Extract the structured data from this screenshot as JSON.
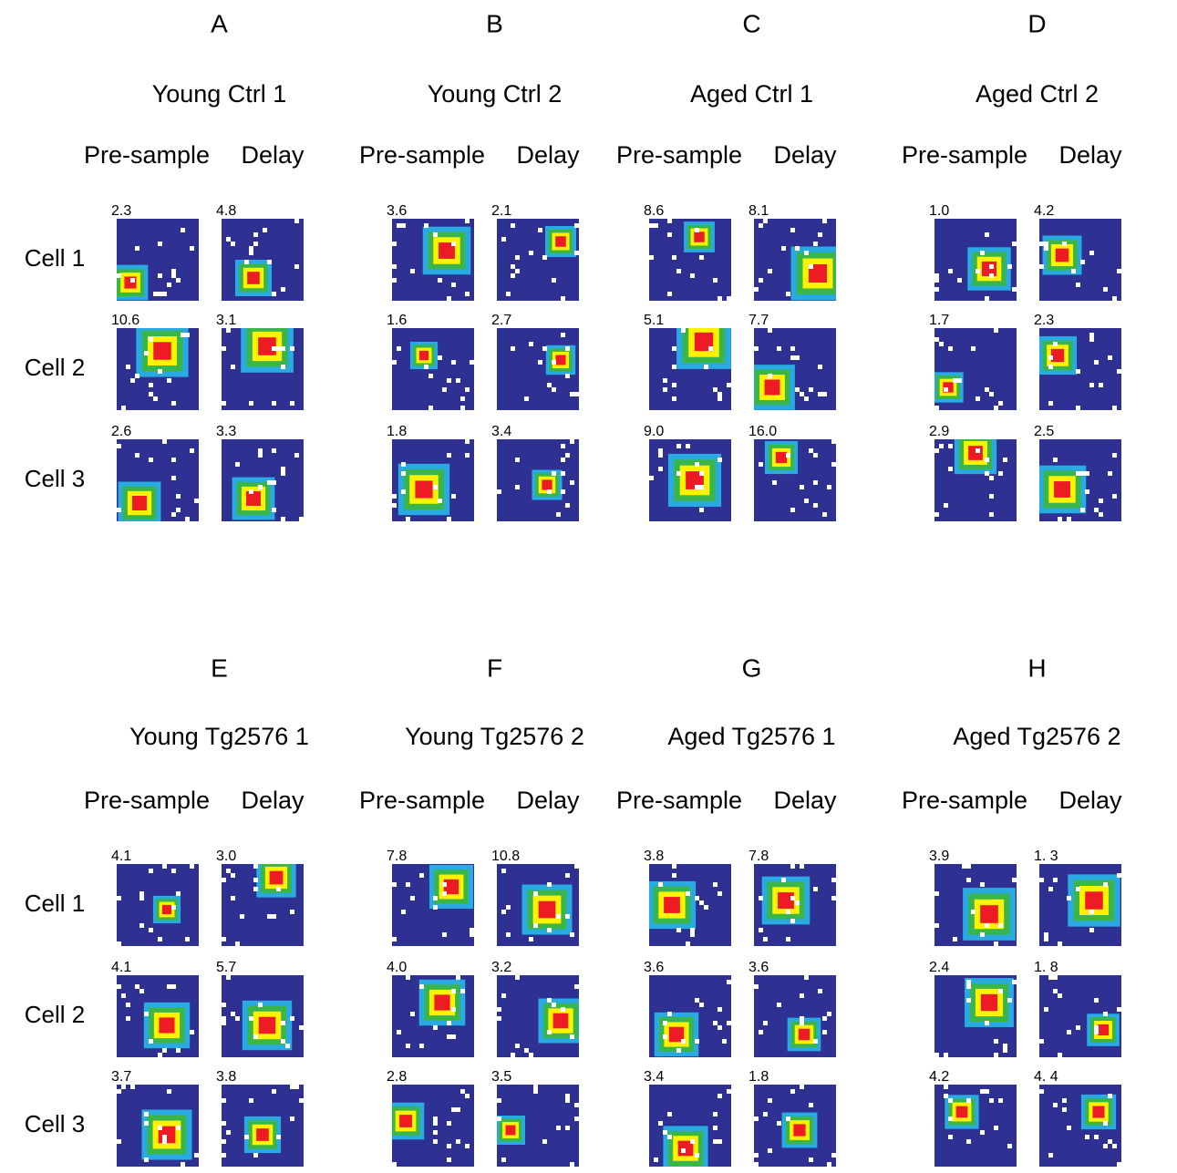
{
  "sections": [
    {
      "row_labels": [
        "Cell 1",
        "Cell 2",
        "Cell 3"
      ],
      "panels": [
        {
          "letter": "A",
          "title": "Young Ctrl 1",
          "columns": [
            "Pre-sample",
            "Delay"
          ],
          "peaks": [
            [
              "2.3",
              "4.8"
            ],
            [
              "10.6",
              "3.1"
            ],
            [
              "2.6",
              "3.3"
            ]
          ]
        },
        {
          "letter": "B",
          "title": "Young Ctrl 2",
          "columns": [
            "Pre-sample",
            "Delay"
          ],
          "peaks": [
            [
              "3.6",
              "2.1"
            ],
            [
              "1.6",
              "2.7"
            ],
            [
              "1.8",
              "3.4"
            ]
          ]
        },
        {
          "letter": "C",
          "title": "Aged Ctrl 1",
          "columns": [
            "Pre-sample",
            "Delay"
          ],
          "peaks": [
            [
              "8.6",
              "8.1"
            ],
            [
              "5.1",
              "7.7"
            ],
            [
              "9.0",
              "16.0"
            ]
          ]
        },
        {
          "letter": "D",
          "title": "Aged Ctrl 2",
          "columns": [
            "Pre-sample",
            "Delay"
          ],
          "peaks": [
            [
              "1.0",
              "4.2"
            ],
            [
              "1.7",
              "2.3"
            ],
            [
              "2.9",
              "2.5"
            ]
          ]
        }
      ]
    },
    {
      "row_labels": [
        "Cell 1",
        "Cell 2",
        "Cell 3"
      ],
      "panels": [
        {
          "letter": "E",
          "title": "Young Tg2576 1",
          "columns": [
            "Pre-sample",
            "Delay"
          ],
          "peaks": [
            [
              "4.1",
              "3.0"
            ],
            [
              "4.1",
              "5.7"
            ],
            [
              "3.7",
              "3.8"
            ]
          ]
        },
        {
          "letter": "F",
          "title": "Young Tg2576 2",
          "columns": [
            "Pre-sample",
            "Delay"
          ],
          "peaks": [
            [
              "7.8",
              "10.8"
            ],
            [
              "4.0",
              "3.2"
            ],
            [
              "2.8",
              "3.5"
            ]
          ]
        },
        {
          "letter": "G",
          "title": "Aged Tg2576 1",
          "columns": [
            "Pre-sample",
            "Delay"
          ],
          "peaks": [
            [
              "3.8",
              "7.8"
            ],
            [
              "3.6",
              "3.6"
            ],
            [
              "3.4",
              "1.8"
            ]
          ]
        },
        {
          "letter": "H",
          "title": "Aged Tg2576 2",
          "columns": [
            "Pre-sample",
            "Delay"
          ],
          "peaks": [
            [
              "3.9",
              "1. 3"
            ],
            [
              "2.4",
              "1. 8"
            ],
            [
              "4.2",
              "4. 4"
            ]
          ]
        }
      ]
    }
  ]
}
